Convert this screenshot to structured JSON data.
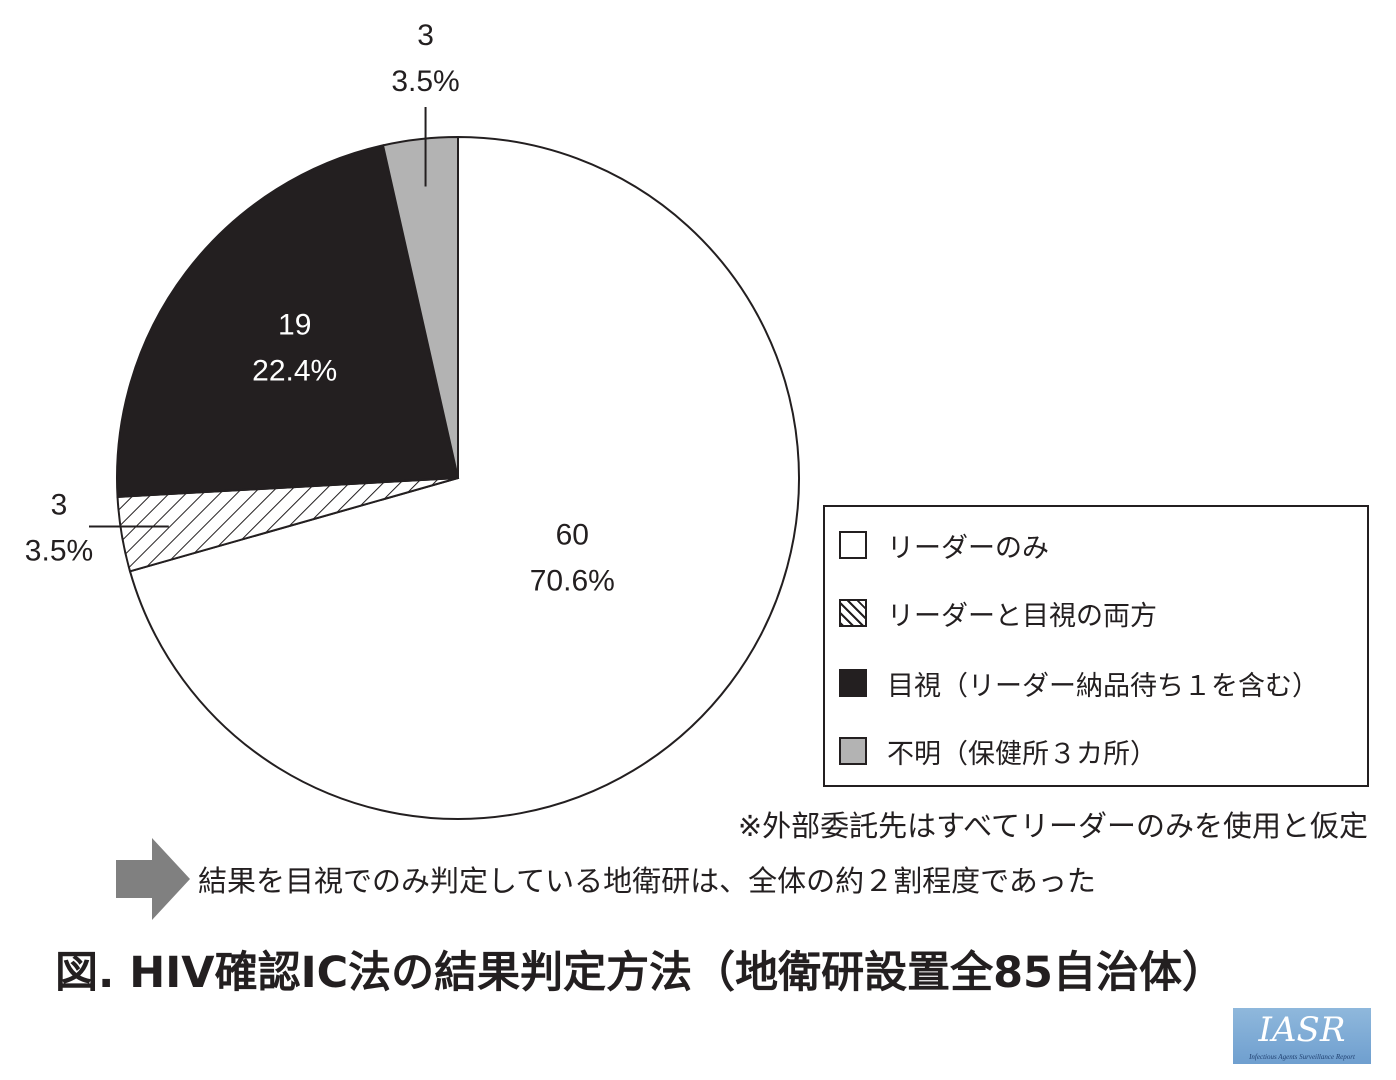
{
  "chart_data": {
    "type": "pie",
    "title": "図. HIV確認IC法の結果判定方法（地衛研設置全85自治体）",
    "slices": [
      {
        "name": "リーダーのみ",
        "value": 60,
        "percent": "70.6%",
        "color": "#ffffff",
        "pattern": "none"
      },
      {
        "name": "リーダーと目視の両方",
        "value": 3,
        "percent": "3.5%",
        "color": "#ffffff",
        "pattern": "hatch"
      },
      {
        "name": "目視（リーダー納品待ち１を含む）",
        "value": 19,
        "percent": "22.4%",
        "color": "#231f20",
        "pattern": "none"
      },
      {
        "name": "不明（保健所３カ所）",
        "value": 3,
        "percent": "3.5%",
        "color": "#b3b3b3",
        "pattern": "none"
      }
    ]
  },
  "legend": {
    "items": [
      {
        "label": "リーダーのみ",
        "color": "#ffffff",
        "pattern": "none"
      },
      {
        "label": "リーダーと目視の両方",
        "color": "#ffffff",
        "pattern": "hatch"
      },
      {
        "label": "目視（リーダー納品待ち１を含む）",
        "color": "#231f20",
        "pattern": "none"
      },
      {
        "label": "不明（保健所３カ所）",
        "color": "#b3b3b3",
        "pattern": "none"
      }
    ]
  },
  "footnote": "※外部委託先はすべてリーダーのみを使用と仮定",
  "conclusion": "結果を目視でのみ判定している地衛研は、全体の約２割程度であった",
  "figure_title": "図. HIV確認IC法の結果判定方法（地衛研設置全85自治体）",
  "logo": {
    "main": "IASR",
    "sub": "Infectious Agents Surveillance Report"
  },
  "colors": {
    "ink": "#231f20",
    "gray": "#b3b3b3",
    "arrow": "#808080",
    "logo_bg": "#7fa9d6"
  }
}
